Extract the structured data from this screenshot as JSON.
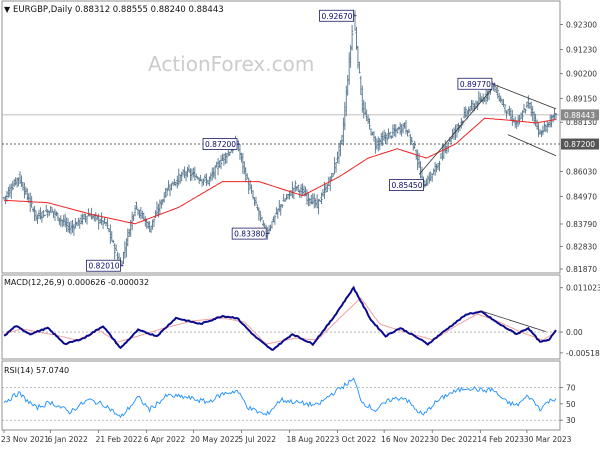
{
  "header": {
    "symbol_line": "EURGBP,Daily  0.88312 0.88555 0.88240 0.88443"
  },
  "watermark": "ActionForex.com",
  "colors": {
    "price_bar": "#54748c",
    "sma": "#ee2222",
    "macd_main": "#0a0a8c",
    "macd_signal": "#f0a0a0",
    "label_border": "#1a1a6a",
    "label_text": "#0a0a6a",
    "grid": "#c8c8c8",
    "axis_text": "#333333",
    "trendline": "#333333",
    "rsi_line": "#1e90ff",
    "watermark": "#d0d0d0"
  },
  "chart_data": [
    {
      "type": "ohlc",
      "panel": "price",
      "symbol": "EURGBP",
      "timeframe": "Daily",
      "ylim": [
        0.817,
        0.933
      ],
      "yticks": [
        0.8187,
        0.8283,
        0.8379,
        0.8497,
        0.8603,
        0.872,
        0.8813,
        0.88443,
        0.8915,
        0.902,
        0.9123,
        0.923
      ],
      "y_tick_labels": [
        "0.81870",
        "0.82830",
        "0.83790",
        "0.84970",
        "0.86030",
        "0.87200",
        "0.88130",
        "0.88443",
        "0.89150",
        "0.90200",
        "0.91230",
        "0.92300"
      ],
      "current_price_label": "0.88443",
      "horizontal_level_label": "0.87200",
      "horizontal_level": 0.872,
      "x_tick_labels": [
        "23 Nov 2021",
        "6 Jan 2022",
        "21 Feb 2022",
        "6 Apr 2022",
        "20 May 2022",
        "5 Jul 2022",
        "18 Aug 2022",
        "3 Oct 2022",
        "16 Nov 2022",
        "30 Dec 2022",
        "14 Feb 2023",
        "30 Mar 2023"
      ],
      "x_tick_index": [
        0,
        32,
        65,
        98,
        130,
        163,
        196,
        229,
        261,
        294,
        327,
        359
      ],
      "n_bars": 380,
      "annotations": [
        {
          "label": "0.92670",
          "value": 0.9267,
          "bar": 240
        },
        {
          "label": "0.89770",
          "value": 0.8977,
          "bar": 335
        },
        {
          "label": "0.87200",
          "value": 0.872,
          "bar": 160
        },
        {
          "label": "0.85450",
          "value": 0.8545,
          "bar": 288
        },
        {
          "label": "0.83380",
          "value": 0.8338,
          "bar": 180
        },
        {
          "label": "0.82010",
          "value": 0.8201,
          "bar": 80
        }
      ],
      "anchors": [
        [
          0,
          0.849
        ],
        [
          10,
          0.858
        ],
        [
          22,
          0.841
        ],
        [
          32,
          0.844
        ],
        [
          45,
          0.836
        ],
        [
          58,
          0.842
        ],
        [
          70,
          0.838
        ],
        [
          80,
          0.8201
        ],
        [
          90,
          0.846
        ],
        [
          100,
          0.836
        ],
        [
          112,
          0.853
        ],
        [
          125,
          0.86
        ],
        [
          140,
          0.856
        ],
        [
          150,
          0.866
        ],
        [
          160,
          0.872
        ],
        [
          168,
          0.854
        ],
        [
          180,
          0.8338
        ],
        [
          190,
          0.846
        ],
        [
          200,
          0.854
        ],
        [
          215,
          0.846
        ],
        [
          225,
          0.858
        ],
        [
          232,
          0.874
        ],
        [
          240,
          0.9267
        ],
        [
          246,
          0.888
        ],
        [
          255,
          0.872
        ],
        [
          265,
          0.876
        ],
        [
          275,
          0.88
        ],
        [
          282,
          0.87
        ],
        [
          288,
          0.8545
        ],
        [
          295,
          0.86
        ],
        [
          305,
          0.873
        ],
        [
          318,
          0.886
        ],
        [
          330,
          0.892
        ],
        [
          335,
          0.8977
        ],
        [
          345,
          0.886
        ],
        [
          352,
          0.88
        ],
        [
          360,
          0.89
        ],
        [
          368,
          0.876
        ],
        [
          374,
          0.881
        ],
        [
          379,
          0.8844
        ]
      ],
      "sma_anchors": [
        [
          0,
          0.848
        ],
        [
          30,
          0.847
        ],
        [
          60,
          0.842
        ],
        [
          90,
          0.838
        ],
        [
          120,
          0.845
        ],
        [
          150,
          0.856
        ],
        [
          175,
          0.856
        ],
        [
          205,
          0.85
        ],
        [
          230,
          0.858
        ],
        [
          250,
          0.866
        ],
        [
          270,
          0.87
        ],
        [
          290,
          0.866
        ],
        [
          310,
          0.872
        ],
        [
          330,
          0.883
        ],
        [
          350,
          0.882
        ],
        [
          365,
          0.881
        ],
        [
          379,
          0.8825
        ]
      ],
      "trendlines": [
        {
          "from": [
            285,
            0.859
          ],
          "to": [
            335,
            0.8955
          ]
        },
        {
          "from": [
            335,
            0.8977
          ],
          "to": [
            379,
            0.887
          ]
        },
        {
          "from": [
            346,
            0.876
          ],
          "to": [
            379,
            0.867
          ]
        }
      ]
    },
    {
      "type": "line",
      "panel": "macd",
      "title": "MACD(12,26,9) 0.000626 -0.000032",
      "ylim": [
        -0.0067,
        0.0122
      ],
      "yticks": [
        0.011023,
        0.0,
        -0.005182
      ],
      "y_tick_labels": [
        "0.011023",
        "0.00",
        "-0.005182"
      ],
      "macd_anchors": [
        [
          0,
          -0.001
        ],
        [
          8,
          0.0015
        ],
        [
          18,
          -0.0005
        ],
        [
          30,
          0.001
        ],
        [
          42,
          -0.003
        ],
        [
          55,
          -0.0015
        ],
        [
          68,
          0.0015
        ],
        [
          80,
          -0.004
        ],
        [
          92,
          0.0005
        ],
        [
          105,
          -0.001
        ],
        [
          118,
          0.0035
        ],
        [
          135,
          0.002
        ],
        [
          150,
          0.004
        ],
        [
          160,
          0.0035
        ],
        [
          172,
          -0.001
        ],
        [
          184,
          -0.0045
        ],
        [
          198,
          -0.0005
        ],
        [
          212,
          -0.003
        ],
        [
          225,
          0.003
        ],
        [
          240,
          0.011
        ],
        [
          252,
          0.003
        ],
        [
          262,
          -0.001
        ],
        [
          272,
          0.001
        ],
        [
          282,
          -0.001
        ],
        [
          291,
          -0.003
        ],
        [
          305,
          0.001
        ],
        [
          318,
          0.0045
        ],
        [
          328,
          0.005
        ],
        [
          340,
          0.002
        ],
        [
          352,
          -0.0005
        ],
        [
          360,
          0.001
        ],
        [
          368,
          -0.0025
        ],
        [
          374,
          -0.002
        ],
        [
          379,
          0.0006
        ]
      ],
      "signal_anchors": [
        [
          0,
          -0.0005
        ],
        [
          12,
          0.0008
        ],
        [
          24,
          0.0
        ],
        [
          36,
          -0.0008
        ],
        [
          50,
          -0.002
        ],
        [
          65,
          0.0005
        ],
        [
          78,
          -0.0025
        ],
        [
          92,
          -0.001
        ],
        [
          110,
          0.001
        ],
        [
          130,
          0.0028
        ],
        [
          150,
          0.0035
        ],
        [
          165,
          0.0025
        ],
        [
          180,
          -0.003
        ],
        [
          200,
          -0.0015
        ],
        [
          215,
          -0.002
        ],
        [
          232,
          0.004
        ],
        [
          245,
          0.0085
        ],
        [
          258,
          0.002
        ],
        [
          275,
          0.0
        ],
        [
          295,
          -0.002
        ],
        [
          310,
          0.0015
        ],
        [
          325,
          0.0045
        ],
        [
          340,
          0.0025
        ],
        [
          355,
          0.0
        ],
        [
          370,
          -0.002
        ],
        [
          379,
          0.0
        ]
      ],
      "trendline": {
        "from": [
          328,
          0.0052
        ],
        "to": [
          372,
          0.0001
        ]
      }
    },
    {
      "type": "line",
      "panel": "rsi",
      "title": "RSI(14) 57.0740",
      "ylim": [
        18,
        95
      ],
      "yticks": [
        70,
        50,
        30
      ],
      "y_tick_labels": [
        "70",
        "50",
        "30"
      ],
      "guide_levels": [
        70,
        30
      ],
      "rsi_anchors": [
        [
          0,
          52
        ],
        [
          10,
          63
        ],
        [
          22,
          45
        ],
        [
          32,
          52
        ],
        [
          45,
          40
        ],
        [
          58,
          55
        ],
        [
          70,
          48
        ],
        [
          80,
          33
        ],
        [
          92,
          58
        ],
        [
          100,
          43
        ],
        [
          112,
          60
        ],
        [
          125,
          58
        ],
        [
          140,
          52
        ],
        [
          150,
          62
        ],
        [
          160,
          66
        ],
        [
          168,
          45
        ],
        [
          180,
          36
        ],
        [
          190,
          55
        ],
        [
          200,
          52
        ],
        [
          215,
          48
        ],
        [
          225,
          62
        ],
        [
          240,
          80
        ],
        [
          246,
          52
        ],
        [
          255,
          42
        ],
        [
          265,
          55
        ],
        [
          275,
          58
        ],
        [
          282,
          44
        ],
        [
          288,
          36
        ],
        [
          295,
          50
        ],
        [
          305,
          62
        ],
        [
          318,
          70
        ],
        [
          330,
          66
        ],
        [
          335,
          68
        ],
        [
          345,
          52
        ],
        [
          352,
          48
        ],
        [
          360,
          60
        ],
        [
          368,
          44
        ],
        [
          374,
          53
        ],
        [
          379,
          57
        ]
      ]
    }
  ]
}
